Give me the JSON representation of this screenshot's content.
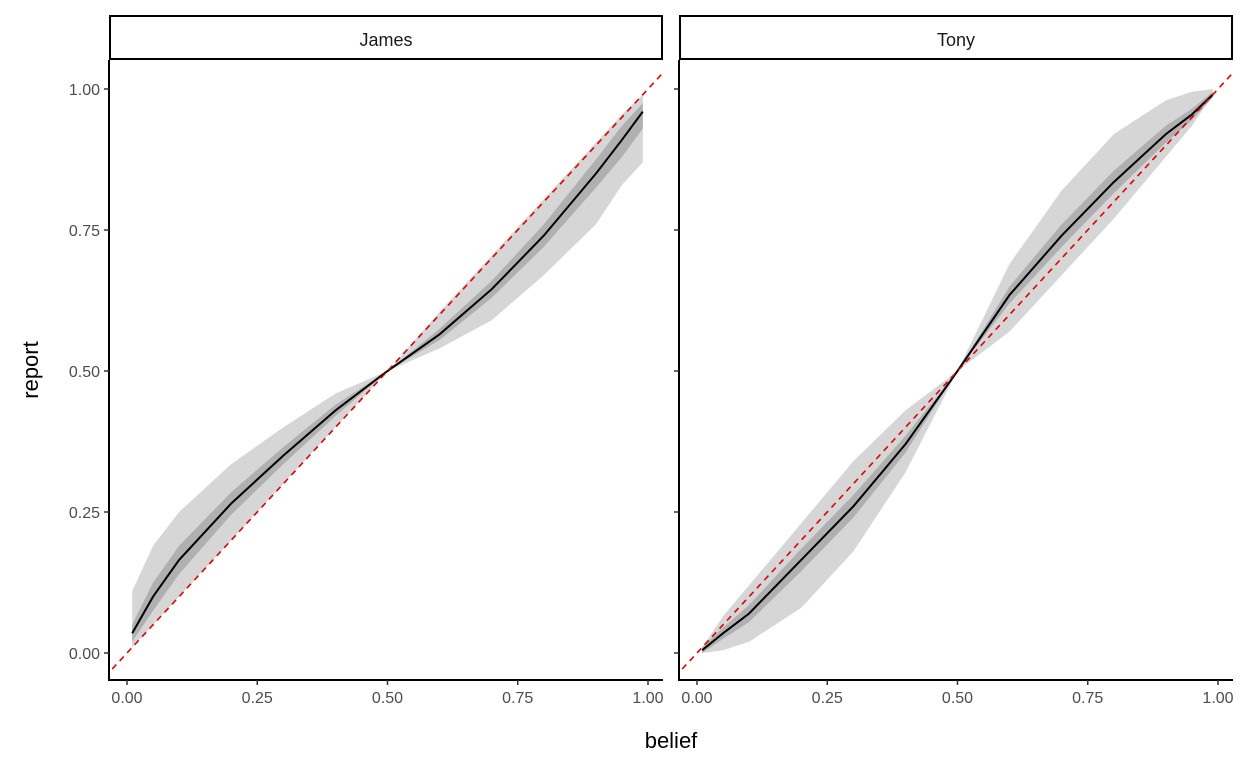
{
  "chart_data": {
    "type": "line",
    "xlabel": "belief",
    "ylabel": "report",
    "xlim": [
      0,
      1
    ],
    "ylim": [
      0,
      1
    ],
    "xticks": [
      "0.00",
      "0.25",
      "0.50",
      "0.75",
      "1.00"
    ],
    "yticks": [
      "0.00",
      "0.25",
      "0.50",
      "0.75",
      "1.00"
    ],
    "grid": false,
    "colors": {
      "line": "#000000",
      "reference": "#e00000",
      "outer_band": "#d6d6d6",
      "inner_band": "#b0b0b0"
    },
    "reference_line": {
      "slope": 1,
      "intercept": 0,
      "style": "dashed"
    },
    "x": [
      0.01,
      0.05,
      0.1,
      0.2,
      0.3,
      0.4,
      0.5,
      0.6,
      0.7,
      0.8,
      0.9,
      0.95,
      0.99
    ],
    "panels": [
      {
        "name": "James",
        "mean": [
          0.035,
          0.1,
          0.165,
          0.265,
          0.35,
          0.43,
          0.5,
          0.565,
          0.645,
          0.74,
          0.85,
          0.91,
          0.96
        ],
        "outer_lo": [
          0.01,
          0.05,
          0.1,
          0.2,
          0.3,
          0.4,
          0.5,
          0.54,
          0.59,
          0.67,
          0.76,
          0.83,
          0.87
        ],
        "outer_hi": [
          0.11,
          0.19,
          0.25,
          0.335,
          0.4,
          0.46,
          0.5,
          0.605,
          0.705,
          0.805,
          0.905,
          0.955,
          0.99
        ],
        "inner_lo": [
          0.02,
          0.075,
          0.14,
          0.245,
          0.335,
          0.42,
          0.5,
          0.555,
          0.63,
          0.72,
          0.825,
          0.88,
          0.93
        ],
        "inner_hi": [
          0.05,
          0.125,
          0.19,
          0.285,
          0.365,
          0.44,
          0.5,
          0.575,
          0.66,
          0.76,
          0.875,
          0.935,
          0.975
        ]
      },
      {
        "name": "Tony",
        "mean": [
          0.005,
          0.035,
          0.07,
          0.165,
          0.26,
          0.37,
          0.5,
          0.635,
          0.74,
          0.835,
          0.92,
          0.955,
          0.99
        ],
        "outer_lo": [
          0.0,
          0.005,
          0.02,
          0.08,
          0.18,
          0.32,
          0.5,
          0.57,
          0.67,
          0.77,
          0.88,
          0.935,
          0.99
        ],
        "outer_hi": [
          0.01,
          0.065,
          0.12,
          0.23,
          0.34,
          0.43,
          0.5,
          0.69,
          0.82,
          0.92,
          0.98,
          0.995,
          1.0
        ],
        "inner_lo": [
          0.0,
          0.025,
          0.055,
          0.145,
          0.24,
          0.355,
          0.5,
          0.62,
          0.72,
          0.815,
          0.905,
          0.945,
          0.985
        ],
        "inner_hi": [
          0.01,
          0.045,
          0.085,
          0.185,
          0.28,
          0.385,
          0.5,
          0.65,
          0.76,
          0.855,
          0.935,
          0.965,
          0.995
        ]
      }
    ]
  }
}
